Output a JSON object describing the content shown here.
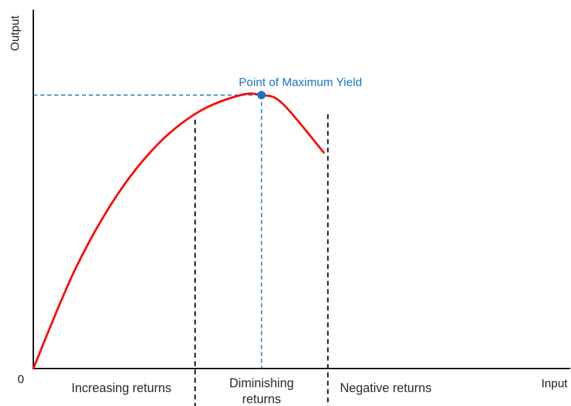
{
  "chart_data": {
    "type": "line",
    "title": "",
    "xlabel": "Input",
    "ylabel": "Output",
    "origin_label": "0",
    "xlim": [
      0,
      100
    ],
    "ylim": [
      0,
      100
    ],
    "grid": false,
    "series": [
      {
        "color": "#ff0000",
        "x": [
          0,
          10,
          20,
          30,
          40,
          50,
          55,
          60,
          70
        ],
        "y": [
          0,
          36,
          63,
          82,
          94,
          100,
          100,
          97,
          79
        ]
      }
    ],
    "max_point": {
      "x": 55,
      "y": 100,
      "color": "#1a73c8"
    },
    "stage_boundaries": [
      {
        "x": 39,
        "y": 92
      },
      {
        "x": 71,
        "y": 94
      }
    ],
    "annotations": {
      "max_point_label": "Point of Maximum Yield",
      "max_point_label_color": "#1a73c8",
      "regions": [
        {
          "lines": [
            "Increasing returns"
          ]
        },
        {
          "lines": [
            "Diminishing",
            "returns"
          ]
        },
        {
          "lines": [
            "Negative returns"
          ]
        }
      ]
    }
  }
}
